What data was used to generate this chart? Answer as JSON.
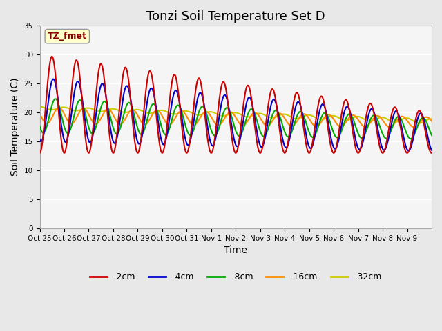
{
  "title": "Tonzi Soil Temperature Set D",
  "xlabel": "Time",
  "ylabel": "Soil Temperature (C)",
  "ylim": [
    0,
    35
  ],
  "yticks": [
    0,
    5,
    10,
    15,
    20,
    25,
    30,
    35
  ],
  "x_labels": [
    "Oct 25",
    "Oct 26",
    "Oct 27",
    "Oct 28",
    "Oct 29",
    "Oct 30",
    "Oct 31",
    "Nov 1",
    "Nov 2",
    "Nov 3",
    "Nov 4",
    "Nov 5",
    "Nov 6",
    "Nov 7",
    "Nov 8",
    "Nov 9"
  ],
  "annotation_text": "TZ_fmet",
  "annotation_color": "#8B0000",
  "annotation_bg": "#FFFFCC",
  "series_colors": [
    "#CC0000",
    "#0000CC",
    "#00AA00",
    "#FF8C00",
    "#CCCC00"
  ],
  "series_labels": [
    "-2cm",
    "-4cm",
    "-8cm",
    "-16cm",
    "-32cm"
  ],
  "background_color": "#E8E8E8",
  "plot_bg_color": "#F5F5F5",
  "grid_color": "#FFFFFF",
  "title_fontsize": 13,
  "label_fontsize": 10
}
